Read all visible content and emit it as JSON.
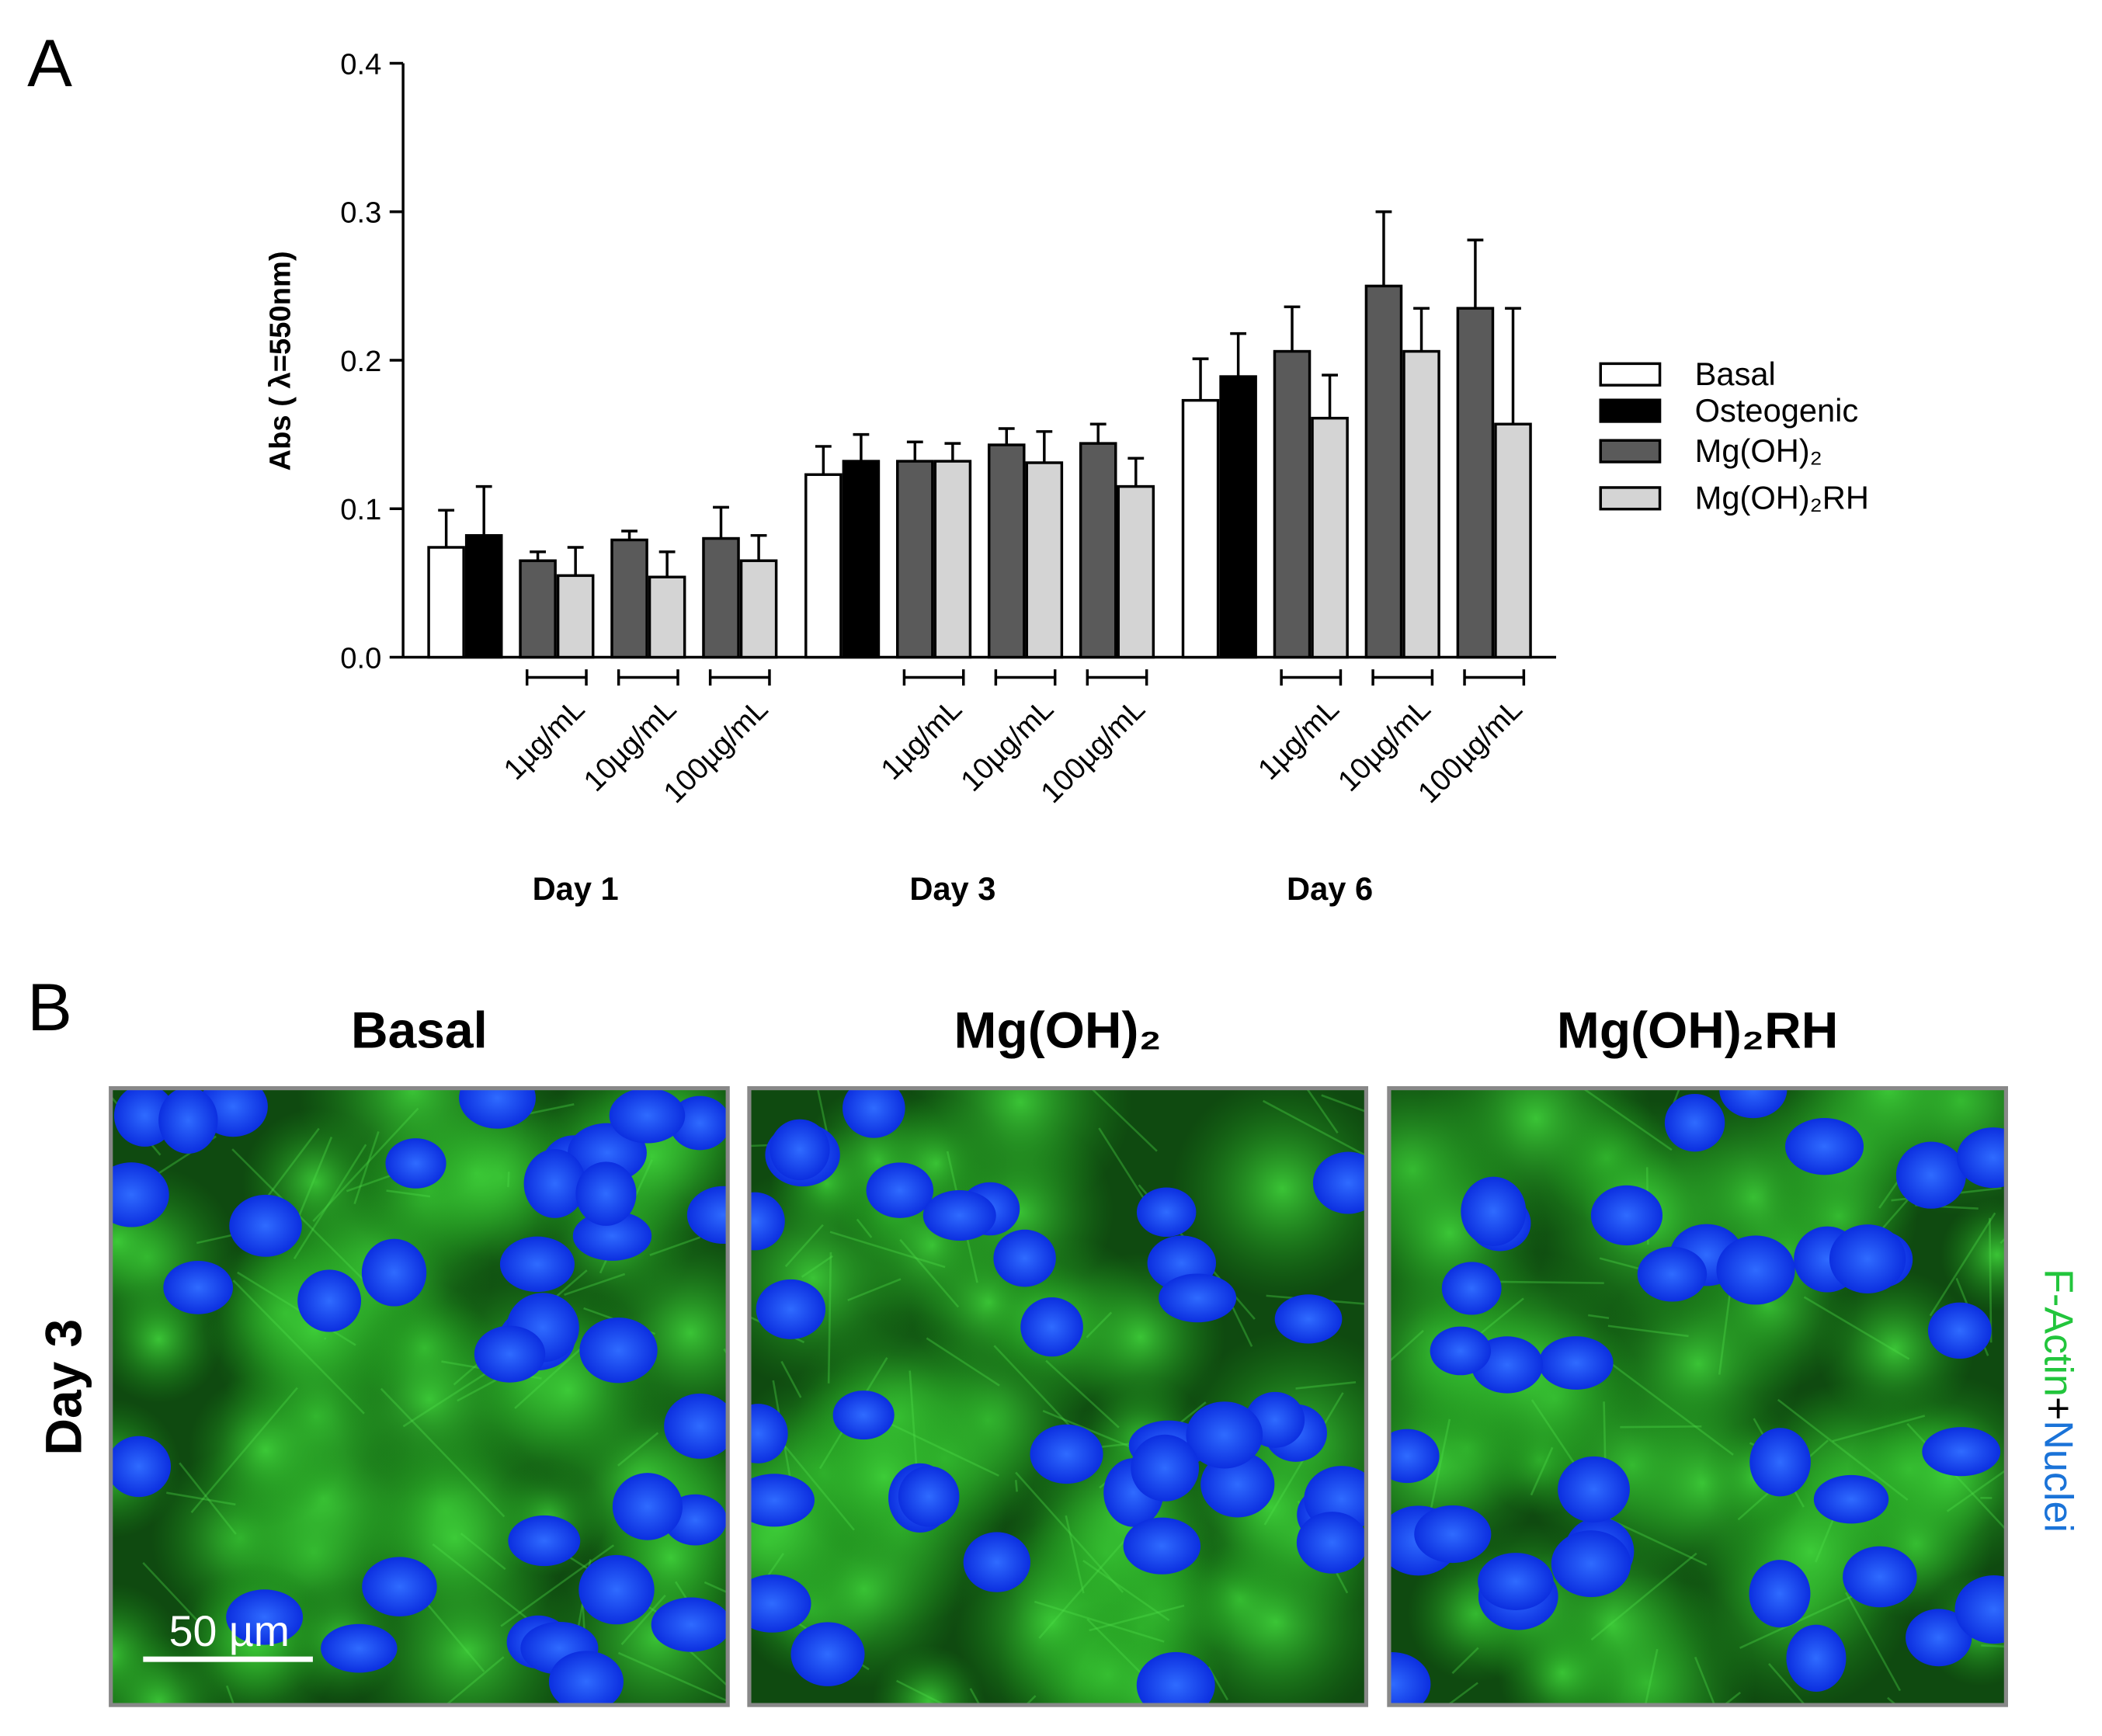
{
  "chart_data": {
    "type": "bar",
    "panel_label": "A",
    "ylabel": "Abs ( λ=550nm)",
    "ylim": [
      0,
      0.4
    ],
    "yticks": [
      {
        "value": 0,
        "label": "0.0"
      },
      0.1,
      0.2,
      0.3,
      0.4
    ],
    "groups": [
      "Day 1",
      "Day 3",
      "Day 6"
    ],
    "categories": [
      null,
      "1µg/mL",
      "10µg/mL",
      "100µg/mL",
      null,
      "1µg/mL",
      "10µg/mL",
      "100µg/mL",
      null,
      "1µg/mL",
      "10µg/mL",
      "100µg/mL"
    ],
    "series": [
      {
        "name": "Basal",
        "color": "#ffffff",
        "values": [
          0.074,
          null,
          null,
          null,
          0.123,
          null,
          null,
          null,
          0.173,
          null,
          null,
          null
        ],
        "errors": [
          0.025,
          null,
          null,
          null,
          0.019,
          null,
          null,
          null,
          0.028,
          null,
          null,
          null
        ]
      },
      {
        "name": "Osteogenic",
        "color": "#000000",
        "values": [
          0.082,
          null,
          null,
          null,
          0.132,
          null,
          null,
          null,
          0.189,
          null,
          null,
          null
        ],
        "errors": [
          0.033,
          null,
          null,
          null,
          0.018,
          null,
          null,
          null,
          0.029,
          null,
          null,
          null
        ]
      },
      {
        "name": "Mg(OH)₂",
        "color": "#5a5a5a",
        "values": [
          null,
          0.065,
          0.079,
          0.08,
          null,
          0.132,
          0.143,
          0.144,
          null,
          0.206,
          0.25,
          0.235
        ],
        "errors": [
          null,
          0.006,
          0.006,
          0.021,
          null,
          0.013,
          0.011,
          0.013,
          null,
          0.03,
          0.05,
          0.046
        ]
      },
      {
        "name": "Mg(OH)₂RH",
        "color": "#d4d4d4",
        "values": [
          null,
          0.055,
          0.054,
          0.065,
          null,
          0.132,
          0.131,
          0.115,
          null,
          0.161,
          0.206,
          0.157
        ],
        "errors": [
          null,
          0.019,
          0.017,
          0.017,
          null,
          0.012,
          0.021,
          0.019,
          null,
          0.029,
          0.029,
          0.078
        ]
      }
    ]
  },
  "panel_b": {
    "panel_label": "B",
    "row_label": "Day 3",
    "columns": [
      "Basal",
      "Mg(OH)₂",
      "Mg(OH)₂RH"
    ],
    "scale_bar": "50 µm",
    "stain_label": [
      "F-Actin",
      "+",
      "Nuclei"
    ]
  }
}
